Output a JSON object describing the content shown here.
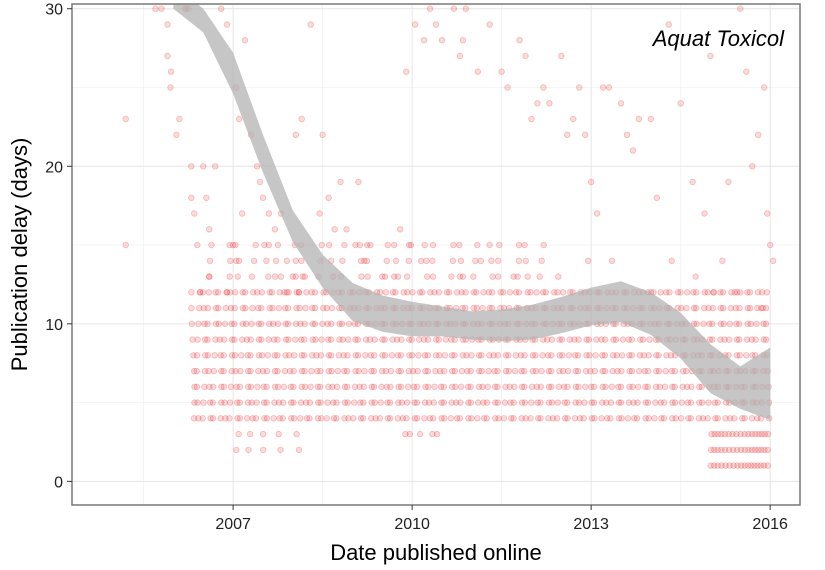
{
  "chart_data": {
    "type": "scatter",
    "title": "",
    "annotation": "Aquat Toxicol",
    "xlabel": "Date published online",
    "ylabel": "Publication delay (days)",
    "xlim": [
      2004.3,
      2016.5
    ],
    "ylim": [
      -1.5,
      30.3
    ],
    "x_ticks": [
      2007,
      2010,
      2013,
      2016
    ],
    "x_tick_labels": [
      "2007",
      "2010",
      "2013",
      "2016"
    ],
    "y_ticks": [
      0,
      10,
      20,
      30
    ],
    "y_tick_labels": [
      "0",
      "10",
      "20",
      "30"
    ],
    "grid": true,
    "point_color": "#e41a1c",
    "point_opacity": 0.16,
    "smooth_color": "#b3b3b3",
    "smooth_fit": {
      "x": [
        2006.0,
        2006.5,
        2007.0,
        2007.5,
        2008.0,
        2008.5,
        2009.0,
        2009.5,
        2010.0,
        2010.5,
        2011.0,
        2011.5,
        2012.0,
        2012.5,
        2013.0,
        2013.5,
        2014.0,
        2014.5,
        2015.0,
        2015.5,
        2016.0
      ],
      "upper": [
        31.5,
        30.0,
        27.2,
        22.0,
        17.2,
        14.4,
        12.6,
        11.8,
        11.4,
        11.1,
        10.8,
        10.9,
        11.2,
        11.7,
        12.3,
        12.7,
        12.0,
        10.7,
        8.7,
        7.3,
        8.5
      ],
      "lower": [
        30.0,
        28.5,
        24.6,
        19.6,
        15.2,
        12.3,
        10.2,
        9.5,
        9.2,
        9.2,
        9.0,
        8.9,
        9.0,
        9.4,
        9.9,
        10.1,
        9.3,
        7.8,
        5.6,
        4.6,
        3.9
      ]
    },
    "points": [
      [
        2005.2,
        23
      ],
      [
        2005.2,
        15
      ],
      [
        2005.7,
        30
      ],
      [
        2005.8,
        30
      ],
      [
        2005.9,
        27
      ],
      [
        2005.9,
        29
      ],
      [
        2005.95,
        25
      ],
      [
        2005.96,
        26
      ],
      [
        2006.1,
        23
      ],
      [
        2006.2,
        30
      ],
      [
        2006.25,
        30
      ],
      [
        2006.3,
        20
      ],
      [
        2006.3,
        18
      ],
      [
        2006.35,
        17
      ],
      [
        2006.4,
        15
      ],
      [
        2006.45,
        12
      ],
      [
        2006.5,
        20
      ],
      [
        2006.55,
        18
      ],
      [
        2006.6,
        16
      ],
      [
        2006.7,
        20
      ],
      [
        2006.8,
        30
      ],
      [
        2006.9,
        29
      ],
      [
        2007.05,
        25
      ],
      [
        2007.1,
        23
      ],
      [
        2007.15,
        17
      ],
      [
        2007.2,
        28
      ],
      [
        2007.3,
        22
      ],
      [
        2007.4,
        20
      ],
      [
        2007.5,
        18
      ],
      [
        2007.6,
        15
      ],
      [
        2007.7,
        16
      ],
      [
        2007.8,
        17
      ],
      [
        2007.9,
        14
      ],
      [
        2008.0,
        13
      ],
      [
        2008.05,
        22
      ],
      [
        2008.15,
        23
      ],
      [
        2008.3,
        29
      ],
      [
        2008.5,
        22
      ],
      [
        2008.6,
        18
      ],
      [
        2008.8,
        19
      ],
      [
        2008.9,
        16
      ],
      [
        2009.1,
        19
      ],
      [
        2009.3,
        15
      ],
      [
        2009.5,
        13
      ],
      [
        2009.7,
        13
      ],
      [
        2009.9,
        26
      ],
      [
        2010.05,
        29
      ],
      [
        2010.2,
        28
      ],
      [
        2010.3,
        30
      ],
      [
        2010.4,
        29
      ],
      [
        2010.5,
        28
      ],
      [
        2010.7,
        30
      ],
      [
        2010.8,
        27
      ],
      [
        2010.85,
        28
      ],
      [
        2010.9,
        30
      ],
      [
        2011.1,
        26
      ],
      [
        2011.3,
        29
      ],
      [
        2011.5,
        26
      ],
      [
        2011.6,
        25
      ],
      [
        2011.8,
        28
      ],
      [
        2011.9,
        27
      ],
      [
        2012.0,
        23
      ],
      [
        2012.1,
        24
      ],
      [
        2012.2,
        25
      ],
      [
        2012.3,
        24
      ],
      [
        2012.5,
        27
      ],
      [
        2012.6,
        22
      ],
      [
        2012.7,
        23
      ],
      [
        2012.8,
        25
      ],
      [
        2012.9,
        22
      ],
      [
        2013.0,
        19
      ],
      [
        2013.1,
        17
      ],
      [
        2013.2,
        25
      ],
      [
        2013.3,
        25
      ],
      [
        2013.5,
        24
      ],
      [
        2013.6,
        22
      ],
      [
        2013.7,
        21
      ],
      [
        2013.8,
        23
      ],
      [
        2014.0,
        23
      ],
      [
        2014.1,
        18
      ],
      [
        2014.3,
        29
      ],
      [
        2014.5,
        24
      ],
      [
        2014.7,
        19
      ],
      [
        2014.9,
        17
      ],
      [
        2015.0,
        27
      ],
      [
        2015.2,
        14
      ],
      [
        2015.3,
        19
      ],
      [
        2015.5,
        30
      ],
      [
        2015.6,
        26
      ],
      [
        2015.7,
        20
      ],
      [
        2015.8,
        22
      ],
      [
        2015.9,
        25
      ],
      [
        2015.95,
        17
      ],
      [
        2016.0,
        15
      ],
      [
        2016.05,
        14
      ],
      [
        2006.05,
        22
      ],
      [
        2006.6,
        13
      ],
      [
        2006.9,
        12
      ],
      [
        2007.0,
        15
      ],
      [
        2007.1,
        14
      ],
      [
        2007.45,
        19
      ],
      [
        2007.6,
        17
      ],
      [
        2007.8,
        13
      ],
      [
        2007.9,
        12
      ],
      [
        2008.1,
        12
      ],
      [
        2008.2,
        13
      ],
      [
        2008.45,
        17
      ],
      [
        2008.7,
        16
      ],
      [
        2009.05,
        15
      ],
      [
        2009.2,
        14
      ],
      [
        2009.8,
        16
      ],
      [
        2009.95,
        15
      ],
      [
        2010.15,
        14
      ],
      [
        2010.8,
        13
      ],
      [
        2011.15,
        14
      ],
      [
        2011.7,
        13
      ],
      [
        2012.45,
        13
      ],
      [
        2012.95,
        14
      ],
      [
        2013.35,
        14
      ],
      [
        2013.95,
        12
      ],
      [
        2014.35,
        14
      ],
      [
        2014.75,
        13
      ],
      [
        2015.05,
        12
      ],
      [
        2015.45,
        12
      ],
      [
        2015.85,
        11
      ]
    ],
    "cluster_bands": [
      {
        "x_start": 2006.3,
        "x_end": 2016.0,
        "y_values": [
          4,
          5,
          6,
          7,
          8,
          9,
          10,
          11,
          12
        ],
        "step": 0.09
      },
      {
        "x_start": 2006.6,
        "x_end": 2012.3,
        "y_values": [
          13,
          14,
          15
        ],
        "step": 0.22
      },
      {
        "x_start": 2015.0,
        "x_end": 2016.0,
        "y_values": [
          1,
          2,
          3
        ],
        "step": 0.06
      },
      {
        "x_start": 2007.0,
        "x_end": 2008.0,
        "y_values": [
          2,
          3
        ],
        "step": 0.25
      },
      {
        "x_start": 2009.8,
        "x_end": 2010.4,
        "y_values": [
          3
        ],
        "step": 0.15
      }
    ]
  }
}
